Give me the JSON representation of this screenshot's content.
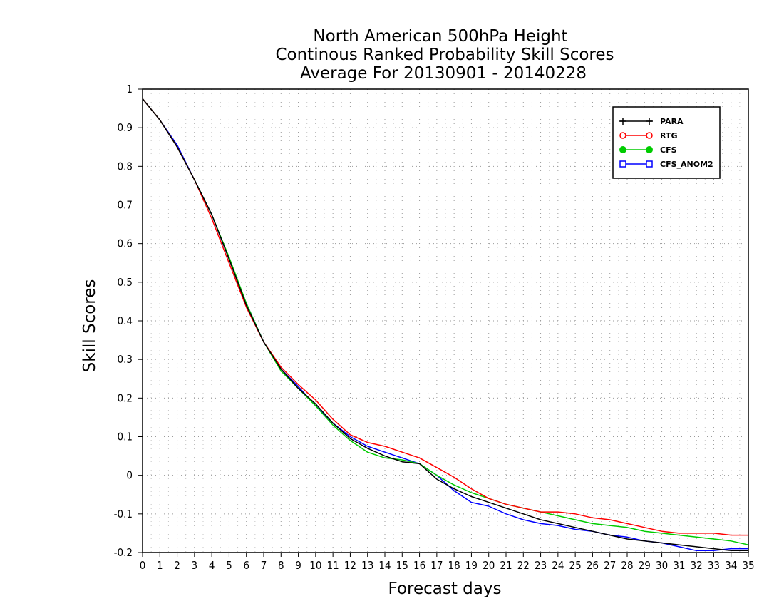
{
  "chart_data": {
    "type": "line",
    "title": [
      "North American 500hPa Height",
      "Continous Ranked Probability Skill Scores",
      "Average For 20130901 - 20140228"
    ],
    "xlabel": "Forecast days",
    "ylabel": "Skill Scores",
    "xlim": [
      0,
      35
    ],
    "ylim": [
      -0.2,
      1
    ],
    "xticks": [
      0,
      1,
      2,
      3,
      4,
      5,
      6,
      7,
      8,
      9,
      10,
      11,
      12,
      13,
      14,
      15,
      16,
      17,
      18,
      19,
      20,
      21,
      22,
      23,
      24,
      25,
      26,
      27,
      28,
      29,
      30,
      31,
      32,
      33,
      34,
      35
    ],
    "yticks": [
      1,
      0.9,
      0.8,
      0.7,
      0.6,
      0.5,
      0.4,
      0.3,
      0.2,
      0.1,
      0,
      -0.1,
      -0.2
    ],
    "grid": true,
    "legend_position": "top-right",
    "x": [
      0,
      1,
      2,
      3,
      4,
      5,
      6,
      7,
      8,
      9,
      10,
      11,
      12,
      13,
      14,
      15,
      16,
      17,
      18,
      19,
      20,
      21,
      22,
      23,
      24,
      25,
      26,
      27,
      28,
      29,
      30,
      31,
      32,
      33,
      34,
      35
    ],
    "series": [
      {
        "name": "PARA",
        "color": "#000000",
        "marker": "plus",
        "values": [
          0.975,
          0.92,
          0.85,
          0.765,
          0.675,
          0.56,
          0.44,
          0.345,
          0.275,
          0.225,
          0.185,
          0.135,
          0.095,
          0.07,
          0.05,
          0.035,
          0.03,
          -0.01,
          -0.035,
          -0.055,
          -0.07,
          -0.085,
          -0.1,
          -0.115,
          -0.125,
          -0.135,
          -0.145,
          -0.155,
          -0.165,
          -0.17,
          -0.175,
          -0.18,
          -0.185,
          -0.19,
          -0.195,
          -0.195
        ]
      },
      {
        "name": "RTG",
        "color": "#ff0000",
        "marker": "open-circle",
        "values": [
          0.975,
          0.92,
          0.85,
          0.765,
          0.665,
          0.55,
          0.435,
          0.345,
          0.28,
          0.235,
          0.195,
          0.145,
          0.105,
          0.085,
          0.075,
          0.06,
          0.045,
          0.02,
          -0.005,
          -0.035,
          -0.06,
          -0.075,
          -0.085,
          -0.095,
          -0.095,
          -0.1,
          -0.11,
          -0.115,
          -0.125,
          -0.135,
          -0.145,
          -0.15,
          -0.15,
          -0.15,
          -0.155,
          -0.155
        ]
      },
      {
        "name": "CFS",
        "color": "#00cc00",
        "marker": "filled-circle",
        "values": [
          0.975,
          0.92,
          0.85,
          0.765,
          0.675,
          0.565,
          0.445,
          0.345,
          0.27,
          0.225,
          0.18,
          0.13,
          0.09,
          0.06,
          0.045,
          0.04,
          0.03,
          0.0,
          -0.025,
          -0.045,
          -0.06,
          -0.075,
          -0.085,
          -0.095,
          -0.105,
          -0.115,
          -0.125,
          -0.13,
          -0.135,
          -0.145,
          -0.15,
          -0.155,
          -0.16,
          -0.165,
          -0.17,
          -0.18
        ]
      },
      {
        "name": "CFS_ANOM2",
        "color": "#0000ff",
        "marker": "open-square",
        "values": [
          0.975,
          0.92,
          0.855,
          0.765,
          0.675,
          0.56,
          0.445,
          0.345,
          0.275,
          0.23,
          0.18,
          0.135,
          0.1,
          0.075,
          0.06,
          0.045,
          0.03,
          0.0,
          -0.04,
          -0.07,
          -0.08,
          -0.1,
          -0.115,
          -0.125,
          -0.13,
          -0.14,
          -0.145,
          -0.155,
          -0.16,
          -0.17,
          -0.175,
          -0.185,
          -0.195,
          -0.195,
          -0.19,
          -0.19
        ]
      }
    ]
  }
}
